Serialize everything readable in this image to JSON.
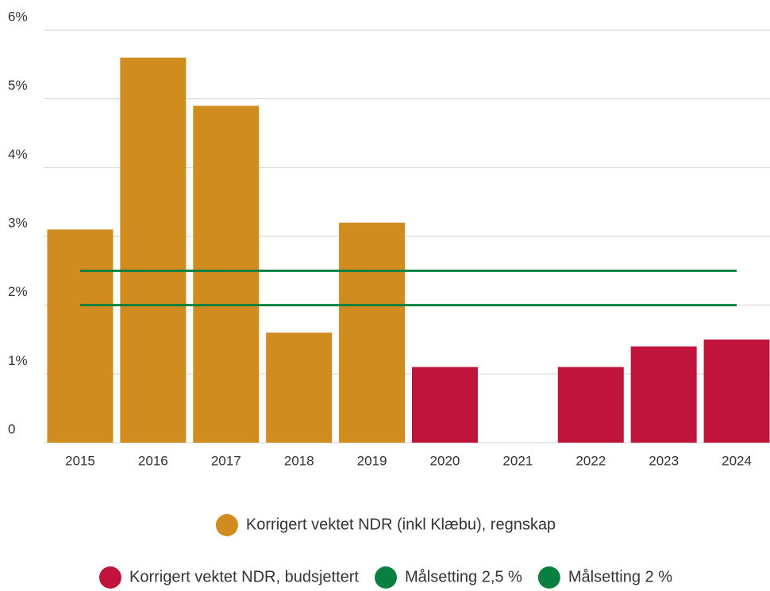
{
  "chart_data": {
    "type": "bar",
    "categories": [
      "2015",
      "2016",
      "2017",
      "2018",
      "2019",
      "2020",
      "2021",
      "2022",
      "2023",
      "2024"
    ],
    "series": [
      {
        "name": "Korrigert vektet NDR (inkl Klæbu), regnskap",
        "type": "bar",
        "color": "#d08c1e",
        "values": [
          3.1,
          5.6,
          4.9,
          1.6,
          3.2,
          null,
          null,
          null,
          null,
          null
        ]
      },
      {
        "name": "Korrigert vektet NDR, budsjettert",
        "type": "bar",
        "color": "#c0143c",
        "values": [
          null,
          null,
          null,
          null,
          null,
          1.1,
          null,
          1.1,
          1.4,
          1.5
        ]
      },
      {
        "name": "Målsetting 2,5 %",
        "type": "line",
        "color": "#0a8040",
        "values": [
          2.5,
          2.5,
          2.5,
          2.5,
          2.5,
          2.5,
          2.5,
          2.5,
          2.5,
          2.5
        ]
      },
      {
        "name": "Målsetting 2 %",
        "type": "line",
        "color": "#0a8040",
        "values": [
          2,
          2,
          2,
          2,
          2,
          2,
          2,
          2,
          2,
          2
        ]
      }
    ],
    "ylim": [
      0,
      6
    ],
    "yticks": [
      0,
      {
        "value": 1,
        "label": "1%"
      },
      {
        "value": 2,
        "label": "2%"
      },
      {
        "value": 3,
        "label": "3%"
      },
      {
        "value": 4,
        "label": "4%"
      },
      {
        "value": 5,
        "label": "5%"
      },
      {
        "value": 6,
        "label": "6%"
      }
    ],
    "grid": true
  }
}
